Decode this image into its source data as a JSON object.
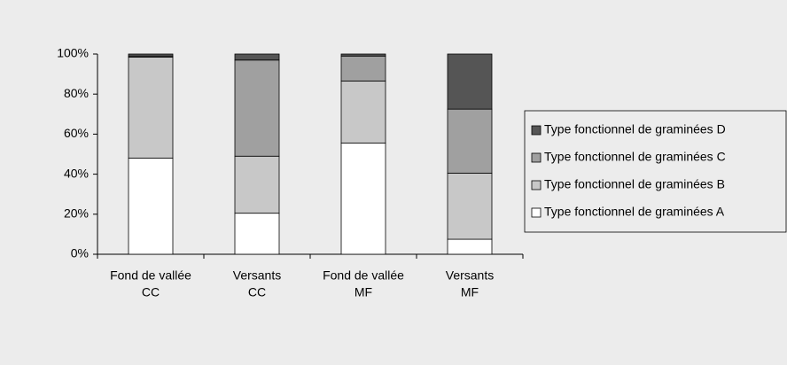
{
  "chart_data": {
    "type": "stacked_bar",
    "categories": [
      [
        "Fond de vallée",
        "CC"
      ],
      [
        "Versants",
        "CC"
      ],
      [
        "Fond de vallée",
        "MF"
      ],
      [
        "Versants",
        "MF"
      ]
    ],
    "series": [
      {
        "name": "Type fonctionnel de graminées A",
        "color": "#ffffff",
        "values": [
          48,
          20.5,
          55.5,
          7.5
        ]
      },
      {
        "name": "Type fonctionnel de graminées B",
        "color": "#c8c8c8",
        "values": [
          50.5,
          28.5,
          31,
          33
        ]
      },
      {
        "name": "Type fonctionnel de graminées C",
        "color": "#a0a0a0",
        "values": [
          0.5,
          48,
          12.5,
          32
        ]
      },
      {
        "name": "Type fonctionnel de graminées D",
        "color": "#555555",
        "values": [
          1,
          3,
          1,
          27.5
        ]
      }
    ],
    "ylim": [
      0,
      100
    ],
    "yticks": [
      {
        "value": 0,
        "label": "0%"
      },
      {
        "value": 20,
        "label": "20%"
      },
      {
        "value": 40,
        "label": "40%"
      },
      {
        "value": 60,
        "label": "60%"
      },
      {
        "value": 80,
        "label": "80%"
      },
      {
        "value": 100,
        "label": "100%"
      }
    ],
    "legend": "right"
  }
}
